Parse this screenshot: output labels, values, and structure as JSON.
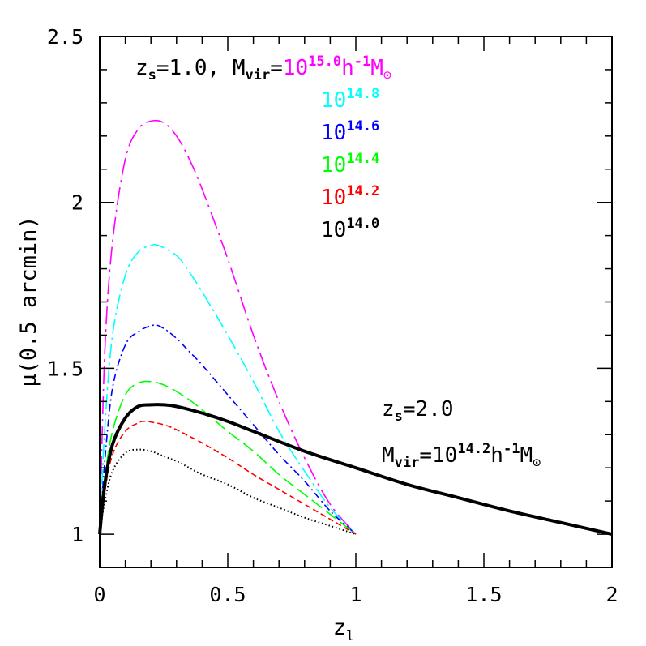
{
  "chart_data": {
    "type": "line",
    "xlabel_main": "z",
    "xlabel_sub": "l",
    "ylabel": "μ(0.5 arcmin)",
    "xlim": [
      0,
      2
    ],
    "ylim": [
      0.9,
      2.5
    ],
    "x_ticks": [
      0,
      0.5,
      1,
      1.5,
      2
    ],
    "x_tick_labels": [
      "0",
      "0.5",
      "1",
      "1.5",
      "2"
    ],
    "y_ticks": [
      1,
      1.5,
      2,
      2.5
    ],
    "y_tick_labels": [
      "1",
      "1.5",
      "2",
      "2.5"
    ],
    "x_minor_step": 0.1,
    "y_minor_step": 0.1,
    "legend_zs1": {
      "zs_main": "z",
      "zs_sub": "s",
      "zs_value": "=1.0,",
      "mvir_main": "M",
      "mvir_sub": "vir",
      "eq": "=",
      "base": "10",
      "unit_h": "h",
      "unit_h_exp": "-1",
      "unit_m": "M",
      "unit_m_sub": "⊙",
      "entries": [
        {
          "exp": "15.0",
          "color": "#ff00ff"
        },
        {
          "exp": "14.8",
          "color": "#00ffff"
        },
        {
          "exp": "14.6",
          "color": "#0000ff"
        },
        {
          "exp": "14.4",
          "color": "#00ff00"
        },
        {
          "exp": "14.2",
          "color": "#ff0000"
        },
        {
          "exp": "14.0",
          "color": "#000000"
        }
      ]
    },
    "legend_zs2": {
      "zs_main": "z",
      "zs_sub": "s",
      "zs_value": "=2.0",
      "mvir_main": "M",
      "mvir_sub": "vir",
      "eq": "=",
      "base": "10",
      "exp": "14.2",
      "unit_h": "h",
      "unit_h_exp": "-1",
      "unit_m": "M",
      "unit_m_sub": "⊙"
    },
    "series": [
      {
        "color": "#ff00ff",
        "dash": "22 6 3 6",
        "width": 1.6,
        "zs": 1.0,
        "x": [
          0,
          0.02,
          0.05,
          0.1,
          0.15,
          0.2,
          0.25,
          0.3,
          0.35,
          0.4,
          0.5,
          0.6,
          0.7,
          0.8,
          0.9,
          1.0
        ],
        "y": [
          1.0,
          1.55,
          1.88,
          2.13,
          2.22,
          2.245,
          2.24,
          2.2,
          2.13,
          2.04,
          1.83,
          1.6,
          1.4,
          1.23,
          1.09,
          1.0
        ]
      },
      {
        "color": "#00ffff",
        "dash": "18 5 3 5",
        "width": 1.6,
        "zs": 1.0,
        "x": [
          0,
          0.02,
          0.05,
          0.1,
          0.15,
          0.2,
          0.23,
          0.3,
          0.35,
          0.4,
          0.5,
          0.6,
          0.7,
          0.8,
          0.9,
          1.0
        ],
        "y": [
          1.0,
          1.32,
          1.6,
          1.78,
          1.85,
          1.87,
          1.87,
          1.84,
          1.79,
          1.73,
          1.6,
          1.46,
          1.31,
          1.19,
          1.08,
          1.0
        ]
      },
      {
        "color": "#0000ff",
        "dash": "9 4 2 4",
        "width": 1.6,
        "zs": 1.0,
        "x": [
          0,
          0.02,
          0.05,
          0.1,
          0.15,
          0.21,
          0.25,
          0.3,
          0.35,
          0.4,
          0.5,
          0.6,
          0.7,
          0.8,
          0.9,
          1.0
        ],
        "y": [
          1.0,
          1.22,
          1.44,
          1.57,
          1.61,
          1.63,
          1.62,
          1.59,
          1.55,
          1.51,
          1.42,
          1.33,
          1.24,
          1.16,
          1.07,
          1.0
        ]
      },
      {
        "color": "#00ff00",
        "dash": "16 6",
        "width": 1.6,
        "zs": 1.0,
        "x": [
          0,
          0.02,
          0.05,
          0.1,
          0.15,
          0.2,
          0.25,
          0.3,
          0.35,
          0.4,
          0.5,
          0.6,
          0.7,
          0.8,
          0.9,
          1.0
        ],
        "y": [
          1.0,
          1.17,
          1.31,
          1.42,
          1.455,
          1.46,
          1.45,
          1.43,
          1.405,
          1.375,
          1.31,
          1.25,
          1.18,
          1.12,
          1.06,
          1.0
        ]
      },
      {
        "color": "#ff0000",
        "dash": "7 4",
        "width": 1.6,
        "zs": 1.0,
        "x": [
          0,
          0.02,
          0.05,
          0.1,
          0.15,
          0.18,
          0.25,
          0.3,
          0.35,
          0.4,
          0.5,
          0.6,
          0.7,
          0.8,
          0.9,
          1.0
        ],
        "y": [
          1.0,
          1.13,
          1.24,
          1.31,
          1.335,
          1.34,
          1.33,
          1.315,
          1.295,
          1.275,
          1.23,
          1.18,
          1.135,
          1.09,
          1.045,
          1.0
        ]
      },
      {
        "color": "#000000",
        "dash": "1.5 3",
        "width": 2,
        "zs": 1.0,
        "x": [
          0,
          0.02,
          0.05,
          0.1,
          0.15,
          0.2,
          0.25,
          0.3,
          0.35,
          0.4,
          0.5,
          0.6,
          0.7,
          0.8,
          0.9,
          1.0
        ],
        "y": [
          1.0,
          1.1,
          1.19,
          1.245,
          1.255,
          1.25,
          1.235,
          1.22,
          1.2,
          1.18,
          1.15,
          1.11,
          1.08,
          1.05,
          1.025,
          1.0
        ]
      },
      {
        "color": "#000000",
        "dash": "",
        "width": 4,
        "zs": 2.0,
        "x": [
          0,
          0.02,
          0.05,
          0.1,
          0.15,
          0.2,
          0.25,
          0.3,
          0.4,
          0.5,
          0.6,
          0.8,
          1.0,
          1.2,
          1.4,
          1.6,
          1.8,
          2.0
        ],
        "y": [
          1.0,
          1.15,
          1.27,
          1.35,
          1.385,
          1.39,
          1.39,
          1.385,
          1.365,
          1.34,
          1.31,
          1.25,
          1.2,
          1.15,
          1.11,
          1.07,
          1.035,
          1.0
        ]
      }
    ]
  }
}
